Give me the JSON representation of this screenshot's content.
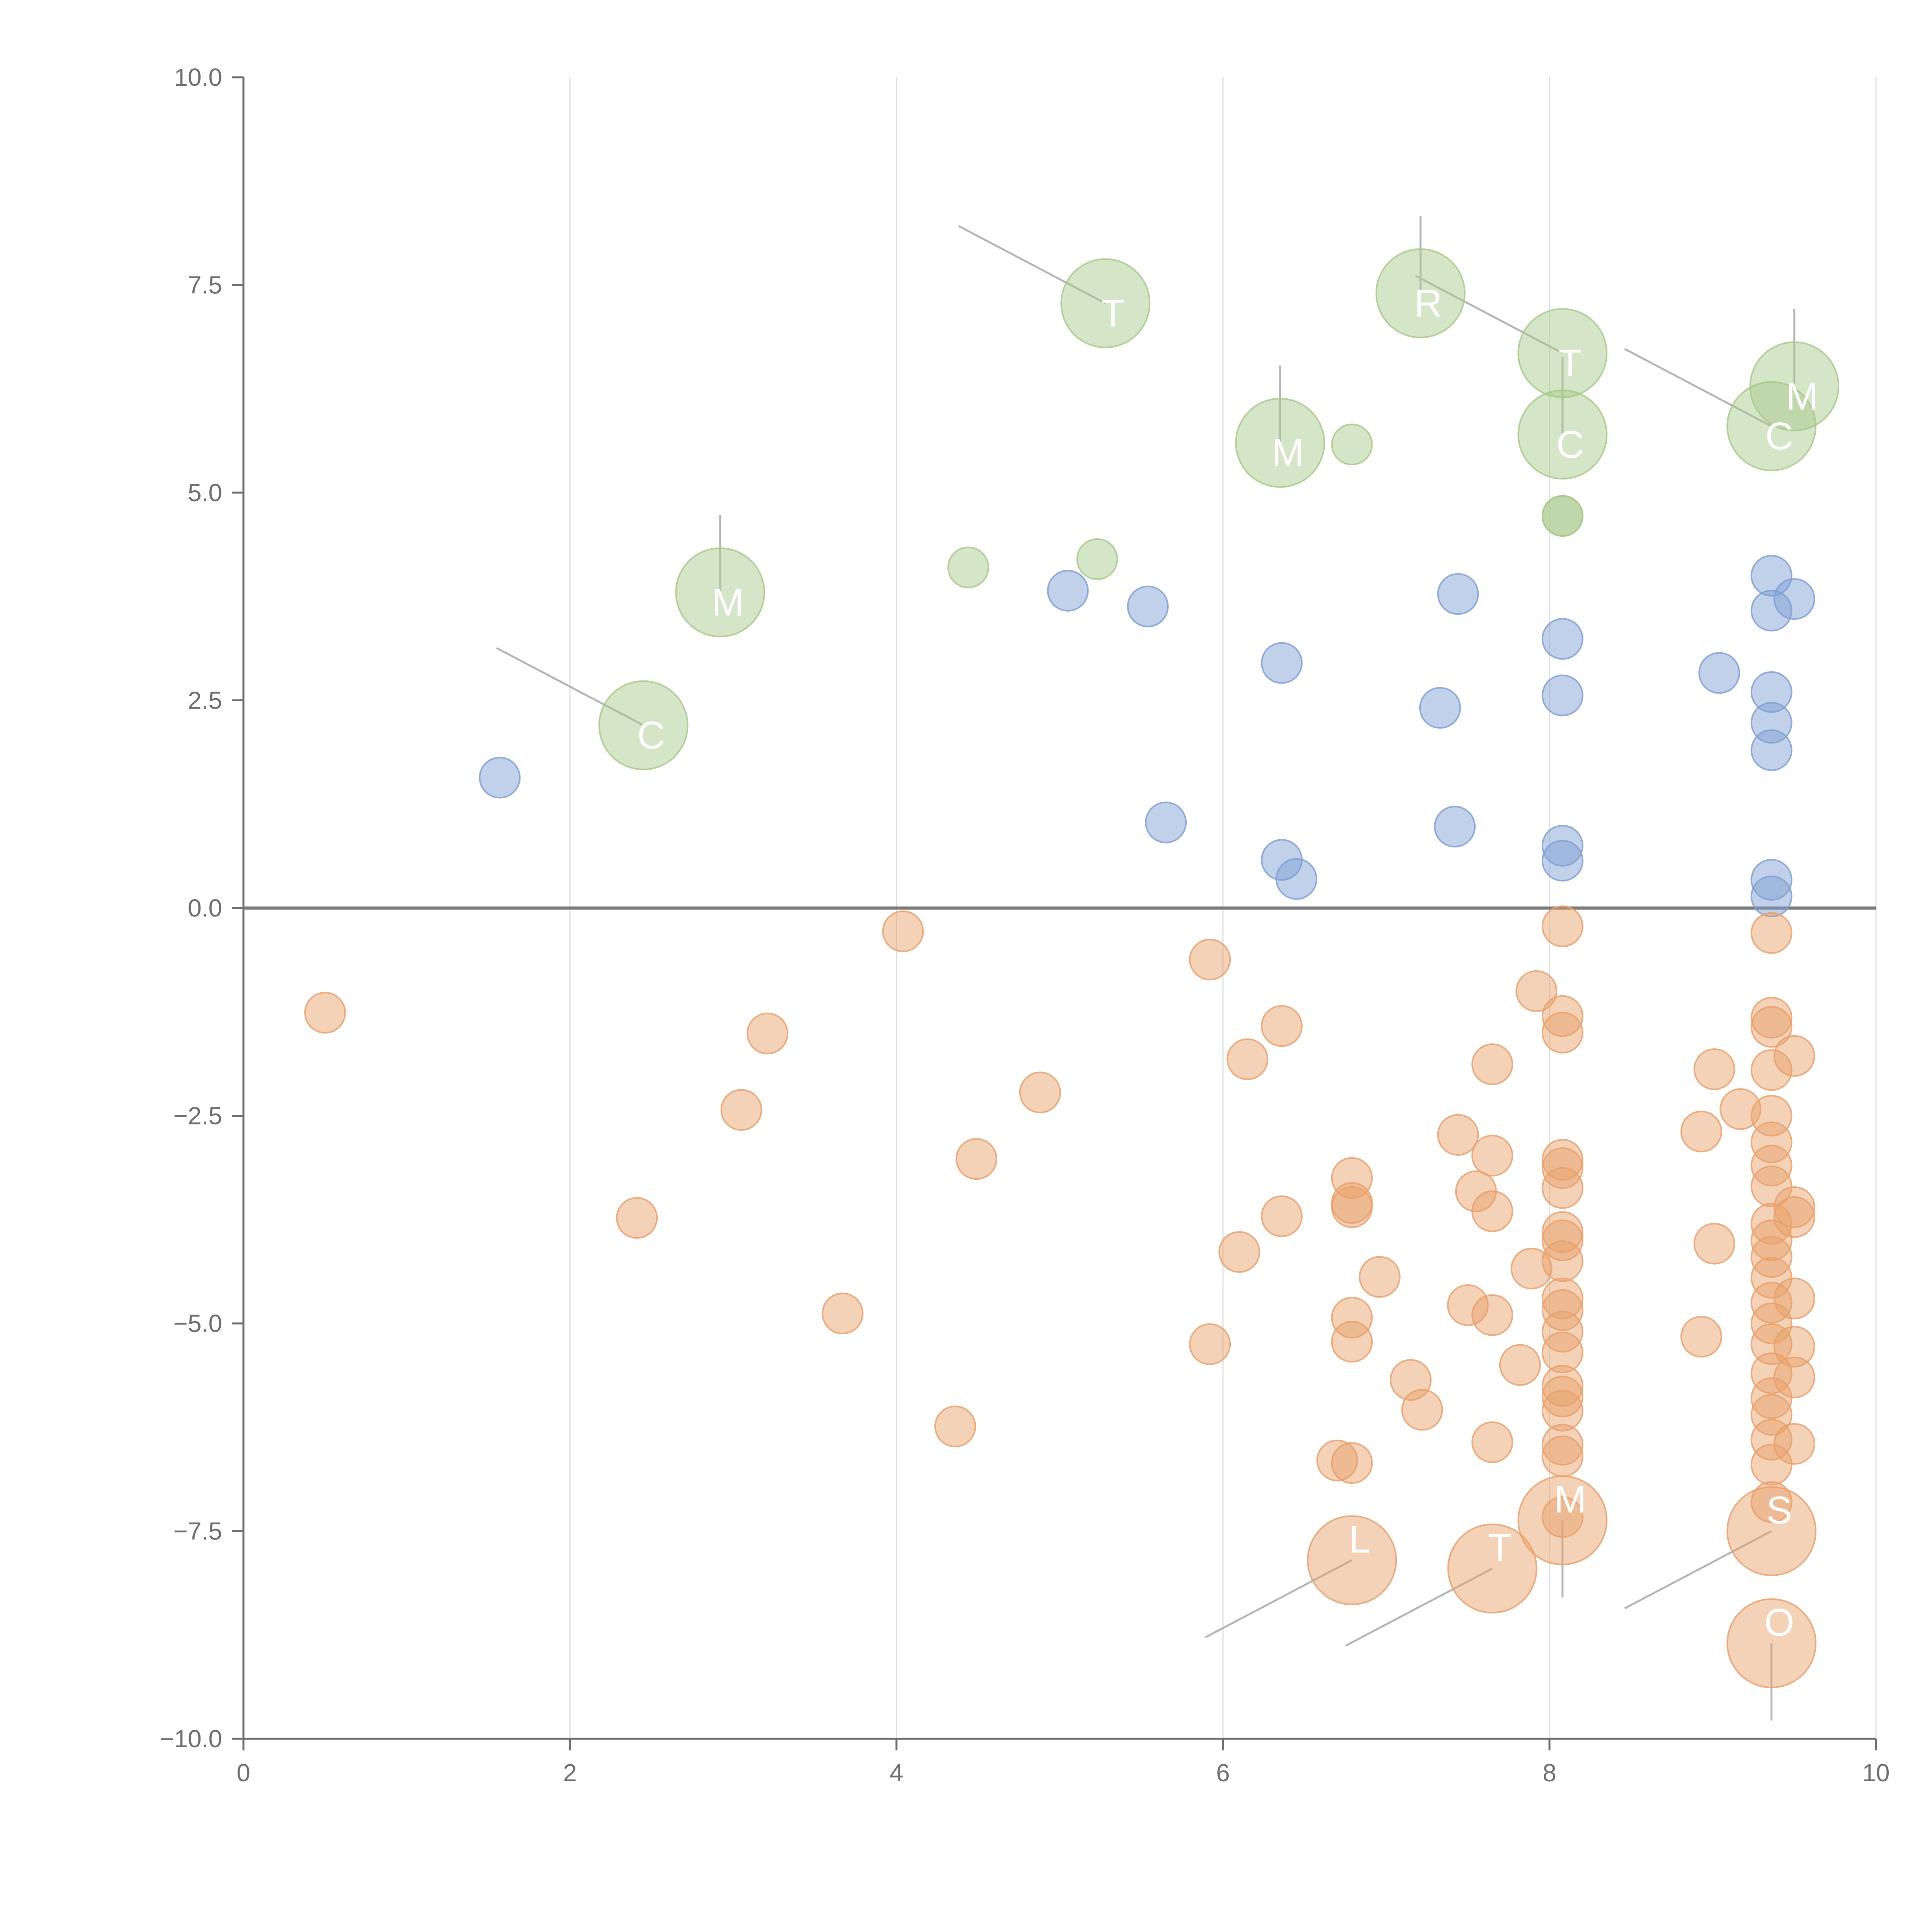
{
  "colors": {
    "blue": "#7f9fd3",
    "green": "#a8c98a",
    "orange": "#e9a06b",
    "axis": "#6e6e6e",
    "grid": "#dcdcdc",
    "leader": "#b4b4b4",
    "label": "#ffffff"
  },
  "chart_data": {
    "type": "scatter",
    "title": "",
    "xlabel": "",
    "ylabel": "",
    "xlim": [
      0,
      10
    ],
    "ylim": [
      -10,
      10
    ],
    "x_ticks": [
      0,
      2,
      4,
      6,
      8,
      10
    ],
    "y_ticks": [
      10,
      7.5,
      5,
      2.5,
      0,
      -2.5,
      -5,
      -7.5,
      -10
    ],
    "x_tick_labels": [
      "0",
      "2",
      "4",
      "6",
      "8",
      "10"
    ],
    "y_tick_labels": [
      "10.0",
      "7.5",
      "5.0",
      "2.5",
      "0.0",
      "−2.5",
      "−5.0",
      "−7.5",
      "−10.0"
    ],
    "vertical_grid": true,
    "horizontal_grid": false,
    "zero_line": true,
    "legend": "none",
    "series": [
      {
        "name": "green",
        "color": "green",
        "points": [
          {
            "x": 2.45,
            "y": 2.2,
            "size": 2.2,
            "label": "C"
          },
          {
            "x": 2.92,
            "y": 3.8,
            "size": 2.2,
            "label": "M"
          },
          {
            "x": 4.44,
            "y": 4.1,
            "size": 1
          },
          {
            "x": 5.23,
            "y": 4.2,
            "size": 1
          },
          {
            "x": 5.28,
            "y": 7.28,
            "size": 2.2,
            "label": "T"
          },
          {
            "x": 6.35,
            "y": 5.6,
            "size": 2.2,
            "label": "M"
          },
          {
            "x": 6.79,
            "y": 5.58,
            "size": 1
          },
          {
            "x": 7.21,
            "y": 7.4,
            "size": 2.2,
            "label": "R"
          },
          {
            "x": 8.08,
            "y": 6.68,
            "size": 2.2,
            "label": "T"
          },
          {
            "x": 8.08,
            "y": 5.7,
            "size": 2.2,
            "label": "C"
          },
          {
            "x": 8.08,
            "y": 4.72,
            "size": 1
          },
          {
            "x": 8.08,
            "y": 4.72,
            "size": 1
          },
          {
            "x": 9.36,
            "y": 5.8,
            "size": 2.2,
            "label": "C"
          },
          {
            "x": 9.5,
            "y": 6.28,
            "size": 2.2,
            "label": "M"
          }
        ]
      },
      {
        "name": "blue",
        "color": "blue",
        "points": [
          {
            "x": 1.57,
            "y": 1.57,
            "size": 1
          },
          {
            "x": 5.05,
            "y": 3.82,
            "size": 1
          },
          {
            "x": 5.54,
            "y": 3.63,
            "size": 1
          },
          {
            "x": 5.65,
            "y": 1.03,
            "size": 1
          },
          {
            "x": 6.36,
            "y": 2.95,
            "size": 1
          },
          {
            "x": 6.36,
            "y": 0.58,
            "size": 1
          },
          {
            "x": 6.45,
            "y": 0.35,
            "size": 1
          },
          {
            "x": 7.33,
            "y": 2.41,
            "size": 1
          },
          {
            "x": 7.42,
            "y": 0.98,
            "size": 1
          },
          {
            "x": 7.44,
            "y": 3.78,
            "size": 1
          },
          {
            "x": 8.08,
            "y": 3.24,
            "size": 1
          },
          {
            "x": 8.08,
            "y": 2.56,
            "size": 1
          },
          {
            "x": 8.08,
            "y": 0.75,
            "size": 1
          },
          {
            "x": 8.08,
            "y": 0.57,
            "size": 1
          },
          {
            "x": 9.04,
            "y": 2.83,
            "size": 1
          },
          {
            "x": 9.36,
            "y": 4.0,
            "size": 1
          },
          {
            "x": 9.36,
            "y": 3.58,
            "size": 1
          },
          {
            "x": 9.36,
            "y": 2.6,
            "size": 1
          },
          {
            "x": 9.36,
            "y": 2.23,
            "size": 1
          },
          {
            "x": 9.36,
            "y": 1.9,
            "size": 1
          },
          {
            "x": 9.36,
            "y": 0.34,
            "size": 1
          },
          {
            "x": 9.36,
            "y": 0.14,
            "size": 1
          },
          {
            "x": 9.5,
            "y": 3.72,
            "size": 1
          }
        ]
      },
      {
        "name": "orange",
        "color": "orange",
        "points": [
          {
            "x": 0.5,
            "y": -1.26,
            "size": 1
          },
          {
            "x": 2.41,
            "y": -3.73,
            "size": 1
          },
          {
            "x": 3.05,
            "y": -2.43,
            "size": 1
          },
          {
            "x": 3.21,
            "y": -1.51,
            "size": 1
          },
          {
            "x": 3.67,
            "y": -4.88,
            "size": 1
          },
          {
            "x": 4.04,
            "y": -0.28,
            "size": 1
          },
          {
            "x": 4.36,
            "y": -6.24,
            "size": 1
          },
          {
            "x": 4.49,
            "y": -3.02,
            "size": 1
          },
          {
            "x": 4.88,
            "y": -2.22,
            "size": 1
          },
          {
            "x": 5.92,
            "y": -0.62,
            "size": 1
          },
          {
            "x": 5.92,
            "y": -5.25,
            "size": 1
          },
          {
            "x": 6.1,
            "y": -4.14,
            "size": 1
          },
          {
            "x": 6.15,
            "y": -1.82,
            "size": 1
          },
          {
            "x": 6.36,
            "y": -1.42,
            "size": 1
          },
          {
            "x": 6.36,
            "y": -3.71,
            "size": 1
          },
          {
            "x": 6.7,
            "y": -6.65,
            "size": 1
          },
          {
            "x": 6.79,
            "y": -6.68,
            "size": 1
          },
          {
            "x": 6.79,
            "y": -3.25,
            "size": 1
          },
          {
            "x": 6.79,
            "y": -3.55,
            "size": 1
          },
          {
            "x": 6.79,
            "y": -3.6,
            "size": 1
          },
          {
            "x": 6.79,
            "y": -4.93,
            "size": 1
          },
          {
            "x": 6.79,
            "y": -5.22,
            "size": 1
          },
          {
            "x": 6.79,
            "y": -7.85,
            "size": 2.2,
            "label": "L"
          },
          {
            "x": 6.96,
            "y": -4.44,
            "size": 1
          },
          {
            "x": 7.15,
            "y": -5.68,
            "size": 1
          },
          {
            "x": 7.22,
            "y": -6.04,
            "size": 1
          },
          {
            "x": 7.44,
            "y": -2.73,
            "size": 1
          },
          {
            "x": 7.55,
            "y": -3.41,
            "size": 1
          },
          {
            "x": 7.5,
            "y": -4.78,
            "size": 1
          },
          {
            "x": 7.65,
            "y": -1.88,
            "size": 1
          },
          {
            "x": 7.65,
            "y": -2.98,
            "size": 1
          },
          {
            "x": 7.65,
            "y": -3.65,
            "size": 1
          },
          {
            "x": 7.65,
            "y": -4.9,
            "size": 1
          },
          {
            "x": 7.65,
            "y": -6.43,
            "size": 1
          },
          {
            "x": 7.65,
            "y": -7.95,
            "size": 2.2,
            "label": "T"
          },
          {
            "x": 7.82,
            "y": -5.5,
            "size": 1
          },
          {
            "x": 7.89,
            "y": -4.34,
            "size": 1
          },
          {
            "x": 7.92,
            "y": -1.0,
            "size": 1
          },
          {
            "x": 8.08,
            "y": -0.22,
            "size": 1
          },
          {
            "x": 8.08,
            "y": -1.3,
            "size": 1
          },
          {
            "x": 8.08,
            "y": -1.5,
            "size": 1
          },
          {
            "x": 8.08,
            "y": -3.03,
            "size": 1
          },
          {
            "x": 8.08,
            "y": -3.13,
            "size": 1
          },
          {
            "x": 8.08,
            "y": -3.37,
            "size": 1
          },
          {
            "x": 8.08,
            "y": -3.9,
            "size": 1
          },
          {
            "x": 8.08,
            "y": -4.0,
            "size": 1
          },
          {
            "x": 8.08,
            "y": -4.25,
            "size": 1
          },
          {
            "x": 8.08,
            "y": -4.7,
            "size": 1
          },
          {
            "x": 8.08,
            "y": -4.84,
            "size": 1
          },
          {
            "x": 8.08,
            "y": -5.1,
            "size": 1
          },
          {
            "x": 8.08,
            "y": -5.35,
            "size": 1
          },
          {
            "x": 8.08,
            "y": -5.75,
            "size": 1
          },
          {
            "x": 8.08,
            "y": -5.88,
            "size": 1
          },
          {
            "x": 8.08,
            "y": -6.05,
            "size": 1
          },
          {
            "x": 8.08,
            "y": -6.46,
            "size": 1
          },
          {
            "x": 8.08,
            "y": -6.6,
            "size": 1
          },
          {
            "x": 8.08,
            "y": -7.33,
            "size": 1
          },
          {
            "x": 8.08,
            "y": -7.37,
            "size": 2.2,
            "label": "M"
          },
          {
            "x": 8.93,
            "y": -2.69,
            "size": 1
          },
          {
            "x": 8.93,
            "y": -5.16,
            "size": 1
          },
          {
            "x": 9.01,
            "y": -1.94,
            "size": 1
          },
          {
            "x": 9.01,
            "y": -4.04,
            "size": 1
          },
          {
            "x": 9.17,
            "y": -2.42,
            "size": 1
          },
          {
            "x": 9.36,
            "y": -0.3,
            "size": 1
          },
          {
            "x": 9.36,
            "y": -1.32,
            "size": 1
          },
          {
            "x": 9.36,
            "y": -1.43,
            "size": 1
          },
          {
            "x": 9.36,
            "y": -1.95,
            "size": 1
          },
          {
            "x": 9.36,
            "y": -2.5,
            "size": 1
          },
          {
            "x": 9.36,
            "y": -2.82,
            "size": 1
          },
          {
            "x": 9.36,
            "y": -3.1,
            "size": 1
          },
          {
            "x": 9.36,
            "y": -3.35,
            "size": 1
          },
          {
            "x": 9.36,
            "y": -3.8,
            "size": 1
          },
          {
            "x": 9.36,
            "y": -4.0,
            "size": 1
          },
          {
            "x": 9.36,
            "y": -4.2,
            "size": 1
          },
          {
            "x": 9.36,
            "y": -4.45,
            "size": 1
          },
          {
            "x": 9.36,
            "y": -4.75,
            "size": 1
          },
          {
            "x": 9.36,
            "y": -5.0,
            "size": 1
          },
          {
            "x": 9.36,
            "y": -5.25,
            "size": 1
          },
          {
            "x": 9.36,
            "y": -5.6,
            "size": 1
          },
          {
            "x": 9.36,
            "y": -5.9,
            "size": 1
          },
          {
            "x": 9.36,
            "y": -6.1,
            "size": 1
          },
          {
            "x": 9.36,
            "y": -6.4,
            "size": 1
          },
          {
            "x": 9.36,
            "y": -6.7,
            "size": 1
          },
          {
            "x": 9.36,
            "y": -7.15,
            "size": 1
          },
          {
            "x": 9.36,
            "y": -7.5,
            "size": 2.2,
            "label": "S"
          },
          {
            "x": 9.36,
            "y": -8.85,
            "size": 2.2,
            "label": "O"
          },
          {
            "x": 9.5,
            "y": -1.78,
            "size": 1
          },
          {
            "x": 9.5,
            "y": -3.6,
            "size": 1
          },
          {
            "x": 9.5,
            "y": -3.72,
            "size": 1
          },
          {
            "x": 9.5,
            "y": -4.7,
            "size": 1
          },
          {
            "x": 9.5,
            "y": -5.28,
            "size": 1
          },
          {
            "x": 9.5,
            "y": -5.65,
            "size": 1
          },
          {
            "x": 9.5,
            "y": -6.45,
            "size": 1
          }
        ]
      }
    ]
  }
}
